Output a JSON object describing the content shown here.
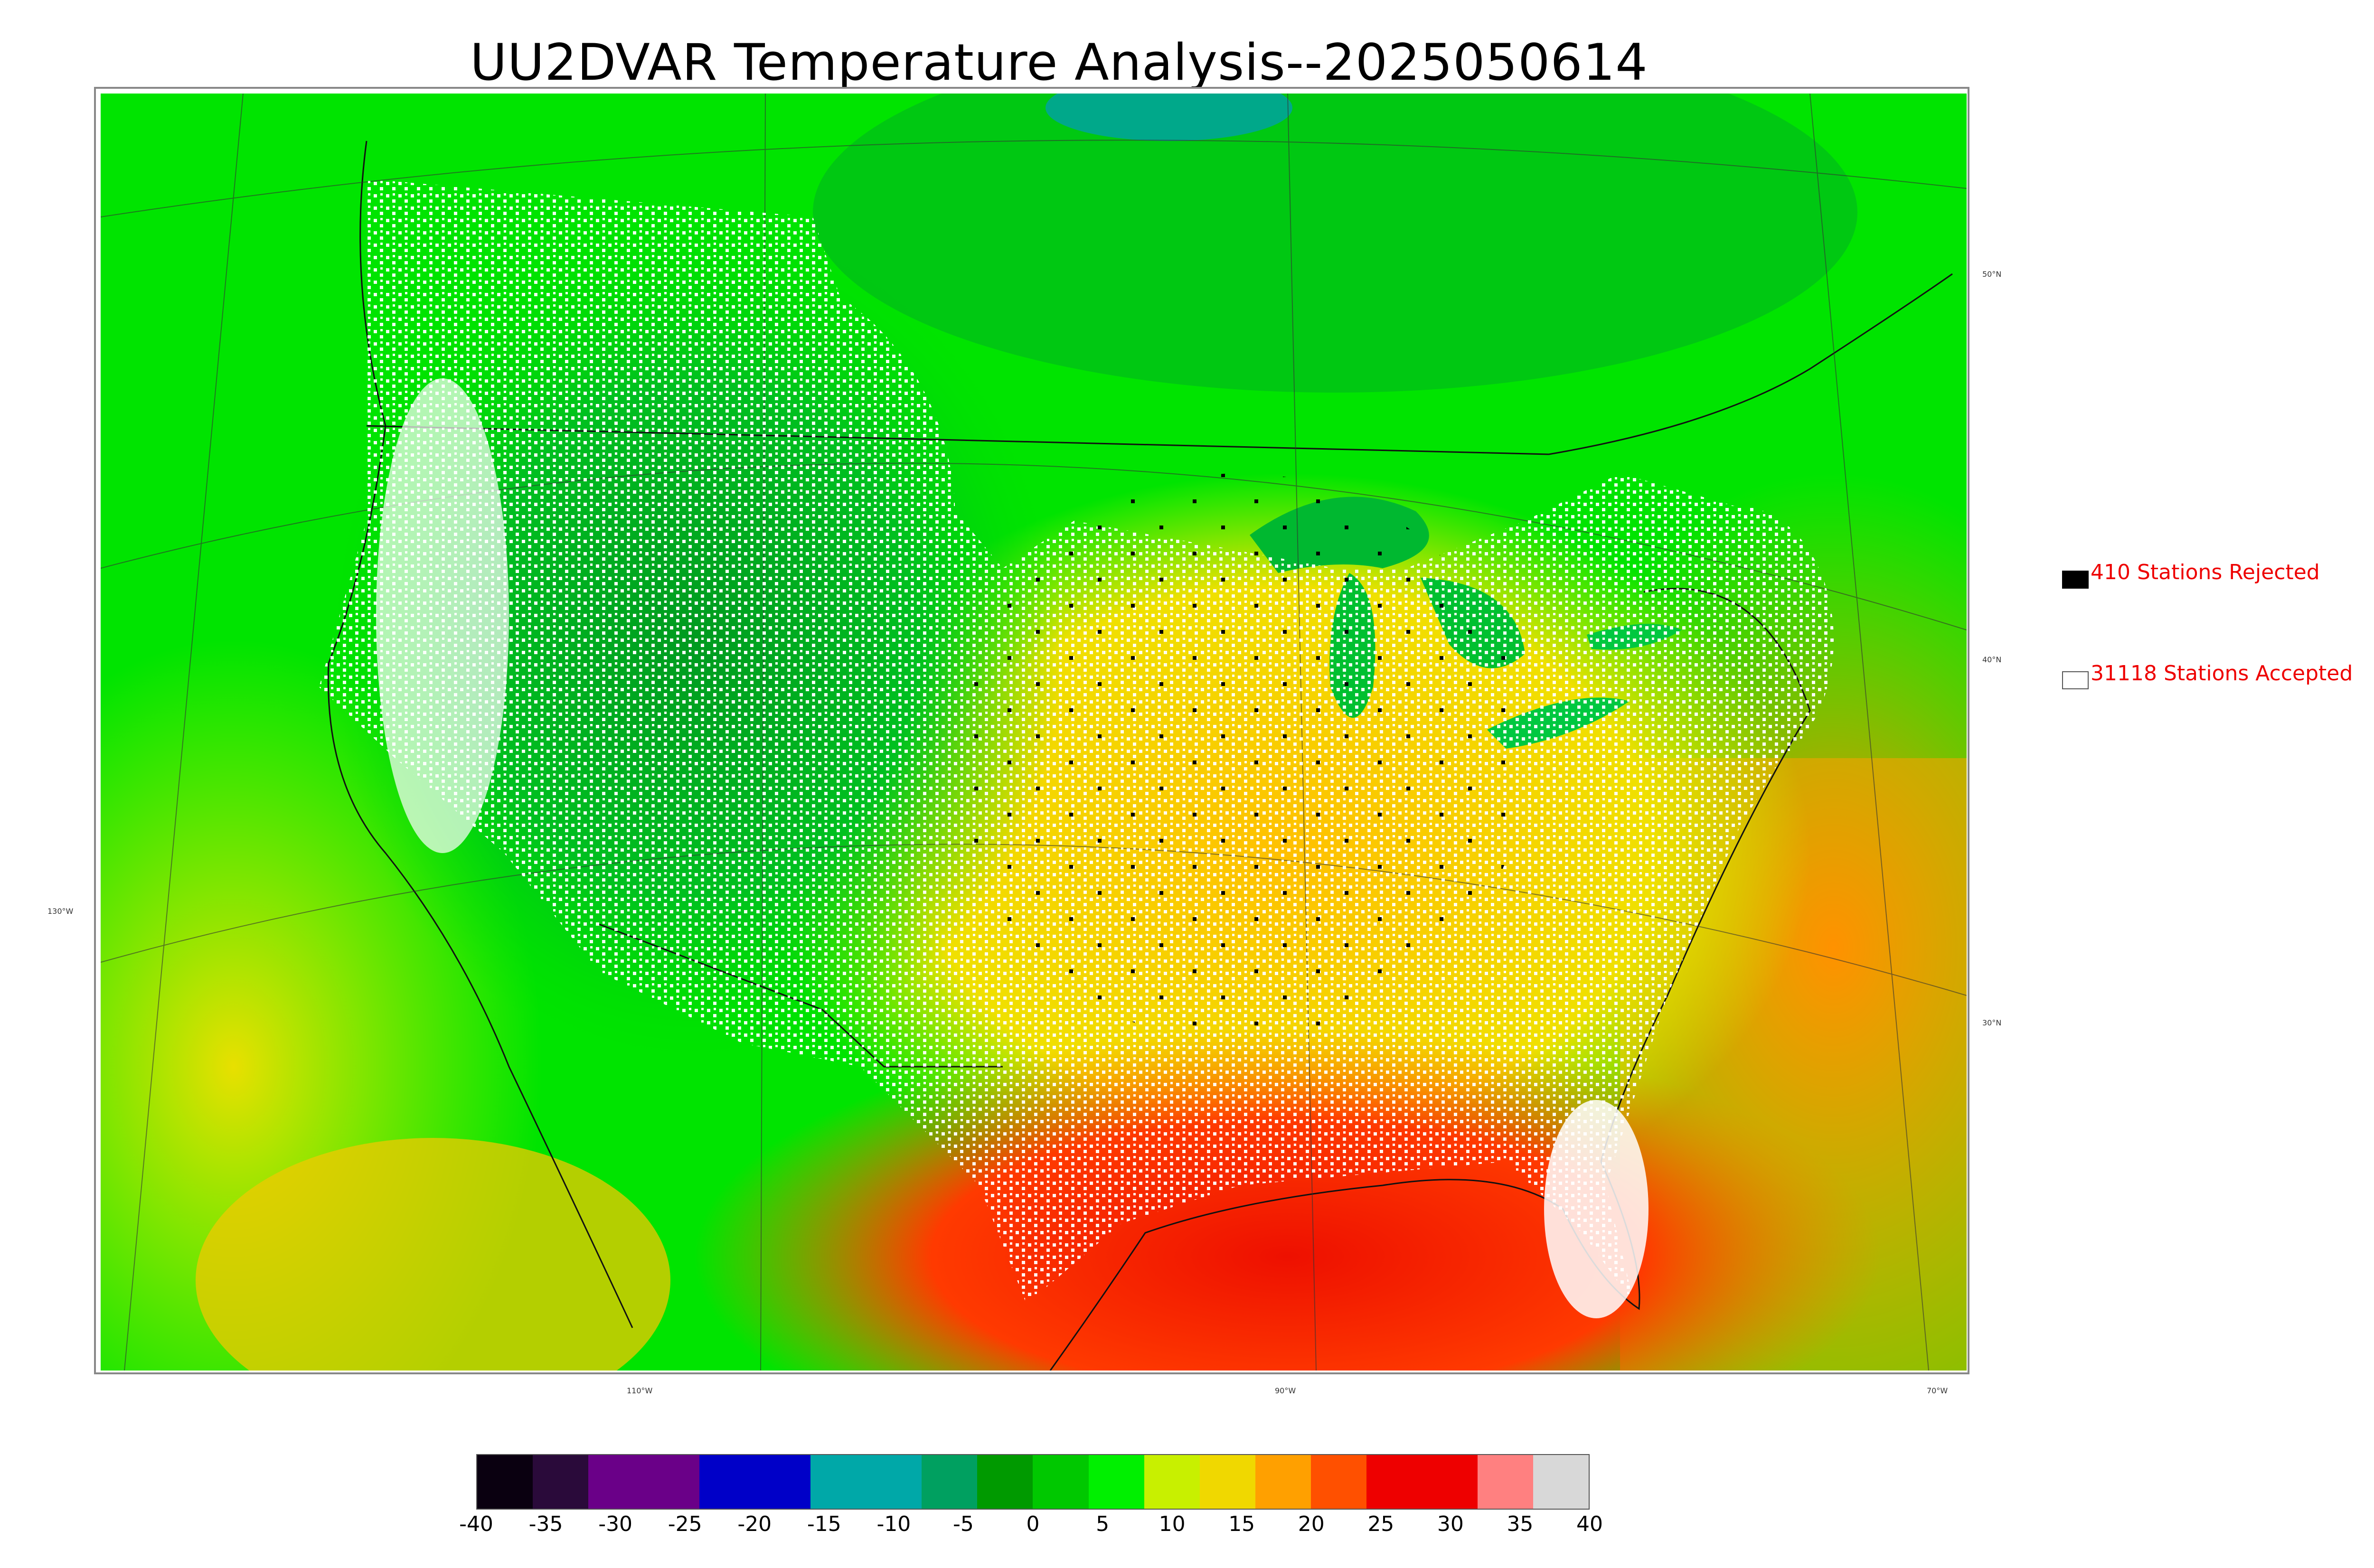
{
  "title": "UU2DVAR Temperature Analysis--2025050614",
  "map": {
    "longitude_labels": [
      "130°W",
      "110°W",
      "90°W",
      "70°W"
    ],
    "latitude_labels": [
      "50°N",
      "40°N",
      "30°N"
    ]
  },
  "legend": {
    "rejected_label": "410 Stations Rejected",
    "accepted_label": "31118 Stations Accepted",
    "rejected_color": "#000000",
    "accepted_color": "#ffffff",
    "text_color": "#ee0000"
  },
  "colorbar": {
    "ticks": [
      "-40",
      "-35",
      "-30",
      "-25",
      "-20",
      "-15",
      "-10",
      "-5",
      "0",
      "5",
      "10",
      "15",
      "20",
      "25",
      "30",
      "35",
      "40"
    ],
    "range": [
      -40,
      40
    ],
    "colors": [
      "#0a0010",
      "#2a0a3a",
      "#6a0088",
      "#6a0088",
      "#0000c8",
      "#0000c8",
      "#00a8a8",
      "#00a8a8",
      "#00a060",
      "#009a00",
      "#00c800",
      "#00f000",
      "#c8f000",
      "#f0d800",
      "#ffa000",
      "#ff5000",
      "#ee0000",
      "#ee0000",
      "#ff8080",
      "#d8d8d8"
    ]
  }
}
